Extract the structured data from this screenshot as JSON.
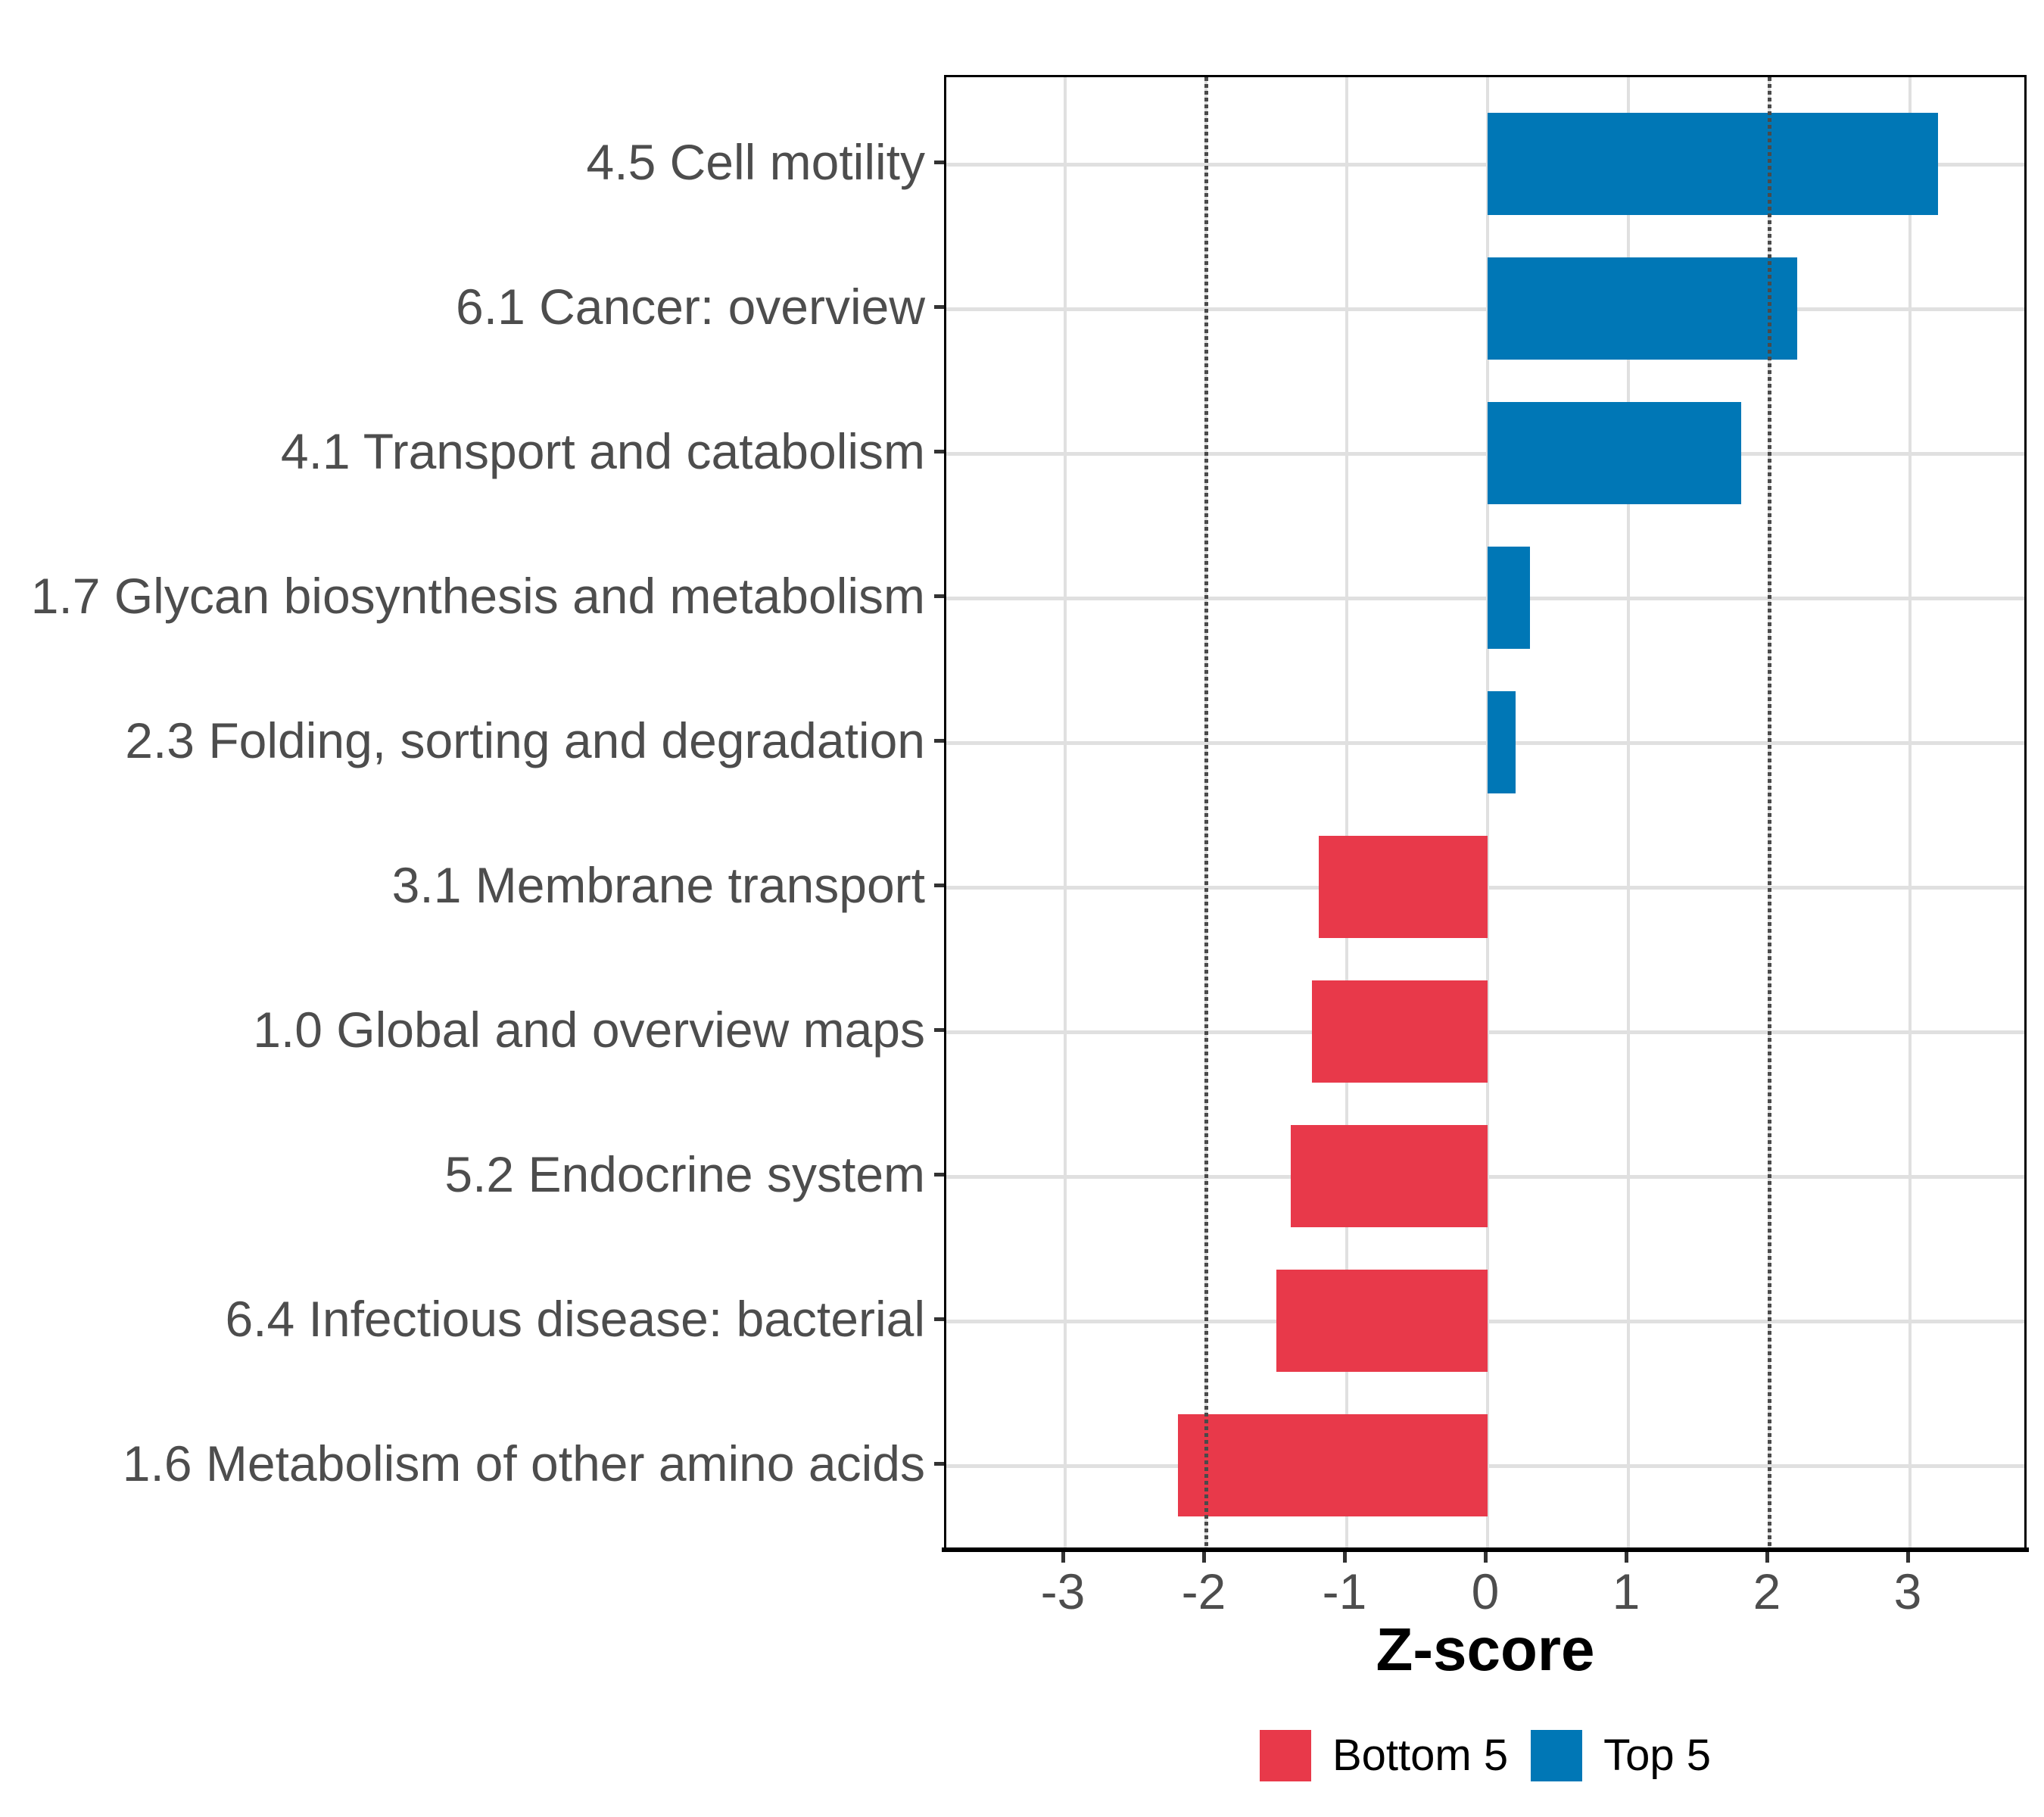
{
  "chart_data": {
    "type": "bar",
    "orientation": "horizontal",
    "title": "",
    "xlabel": "Z-score",
    "ylabel": "",
    "categories": [
      "4.5 Cell motility",
      "6.1 Cancer: overview",
      "4.1 Transport and catabolism",
      "1.7 Glycan biosynthesis and metabolism",
      "2.3 Folding, sorting and degradation",
      "3.1 Membrane transport",
      "1.0 Global and overview maps",
      "5.2 Endocrine system",
      "6.4 Infectious disease: bacterial",
      "1.6 Metabolism of other amino acids"
    ],
    "series": [
      {
        "name": "Z-score",
        "values": [
          3.2,
          2.2,
          1.8,
          0.3,
          0.2,
          -1.2,
          -1.25,
          -1.4,
          -1.5,
          -2.2
        ]
      }
    ],
    "groups": [
      "Top 5",
      "Top 5",
      "Top 5",
      "Top 5",
      "Top 5",
      "Bottom 5",
      "Bottom 5",
      "Bottom 5",
      "Bottom 5",
      "Bottom 5"
    ],
    "x_ticks": [
      -3,
      -2,
      -1,
      0,
      1,
      2,
      3
    ],
    "xlim": [
      -3.84,
      3.84
    ],
    "reference_lines": [
      -2,
      2
    ],
    "grid": "major",
    "legend_position": "bottom",
    "legend": [
      {
        "label": "Bottom 5",
        "color": "#E8394A"
      },
      {
        "label": "Top 5",
        "color": "#0077B6"
      }
    ],
    "colors": {
      "grid": "#E0E0E0",
      "axis_text": "#4D4D4D",
      "tick_mark": "#333333",
      "reference_line": "#4A4A4A",
      "axis_line": "#000000"
    }
  }
}
